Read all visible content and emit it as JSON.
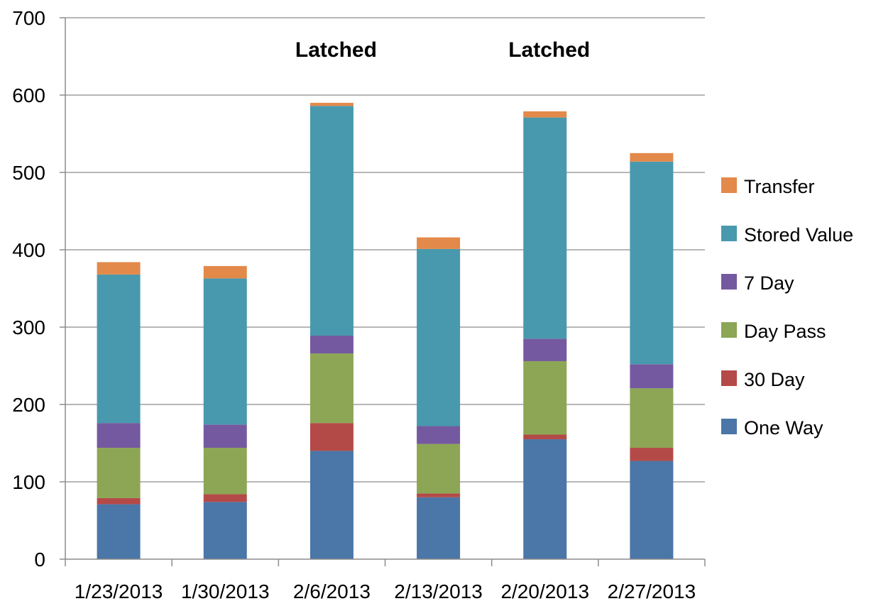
{
  "chart_data": {
    "type": "bar",
    "stacked": true,
    "categories": [
      "1/23/2013",
      "1/30/2013",
      "2/6/2013",
      "2/13/2013",
      "2/20/2013",
      "2/27/2013"
    ],
    "series": [
      {
        "name": "One Way",
        "color": "#4a76a8",
        "values": [
          71,
          74,
          140,
          80,
          155,
          127
        ]
      },
      {
        "name": "30 Day",
        "color": "#b44a47",
        "values": [
          8,
          10,
          36,
          5,
          6,
          17
        ]
      },
      {
        "name": "Day Pass",
        "color": "#8ca655",
        "values": [
          65,
          60,
          90,
          64,
          95,
          77
        ]
      },
      {
        "name": "7 Day",
        "color": "#7559a0",
        "values": [
          32,
          30,
          23,
          23,
          29,
          31
        ]
      },
      {
        "name": "Stored Value",
        "color": "#4899ad",
        "values": [
          192,
          189,
          297,
          229,
          286,
          262
        ]
      },
      {
        "name": "Transfer",
        "color": "#e3894a",
        "values": [
          16,
          16,
          4,
          15,
          8,
          11
        ]
      }
    ],
    "annotations": [
      {
        "text": "Latched",
        "category": "2/6/2013"
      },
      {
        "text": "Latched",
        "category": "2/20/2013"
      }
    ],
    "ylim": [
      0,
      700
    ],
    "yticks": [
      "0",
      "100",
      "200",
      "300",
      "400",
      "500",
      "600",
      "700"
    ],
    "grid": true,
    "legend_position": "right"
  }
}
